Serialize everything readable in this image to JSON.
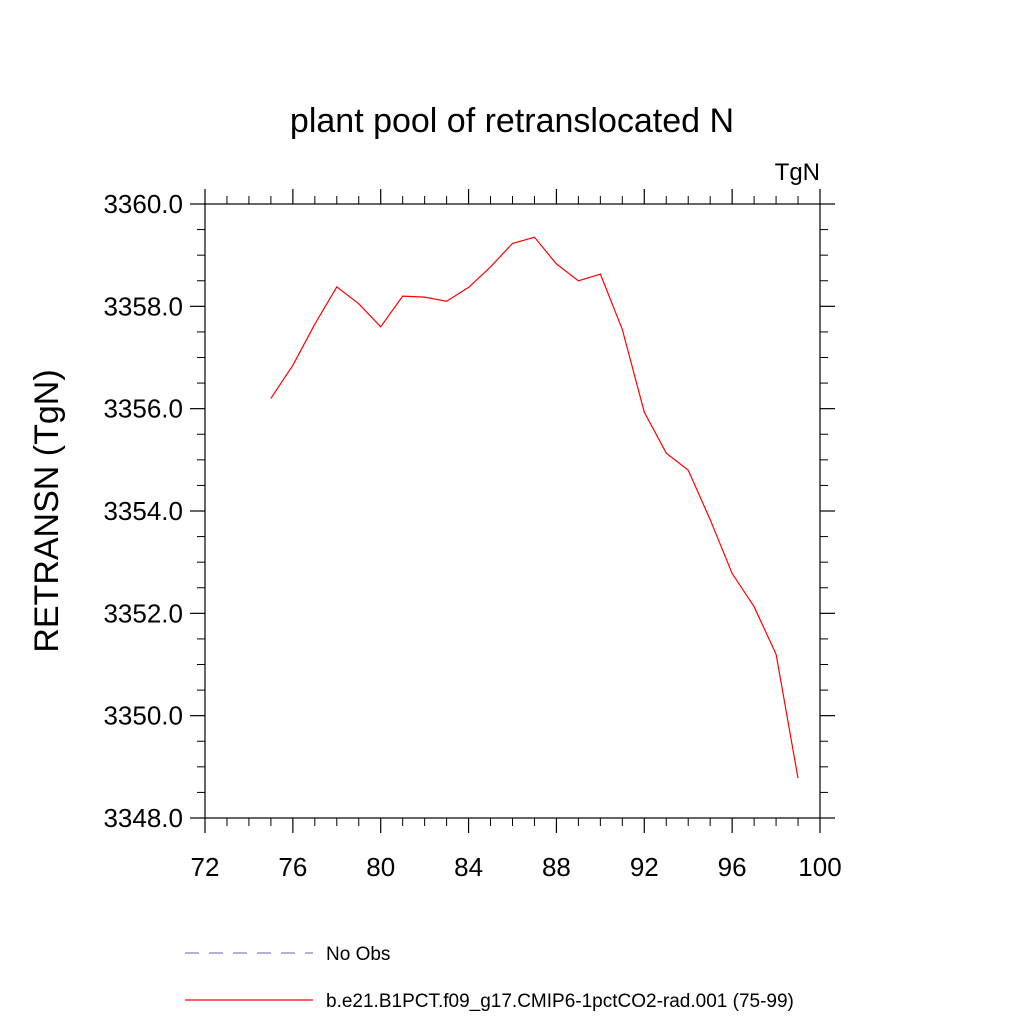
{
  "chart_data": {
    "type": "line",
    "title": "plant pool of retranslocated N",
    "units_label": "TgN",
    "ylabel": "RETRANSN  (TgN)",
    "xlabel": "",
    "xlim": [
      72,
      100
    ],
    "ylim": [
      3348.0,
      3360.0
    ],
    "x_ticks": [
      72,
      76,
      80,
      84,
      88,
      92,
      96,
      100
    ],
    "x_tick_labels": [
      "72",
      "76",
      "80",
      "84",
      "88",
      "92",
      "96",
      "100"
    ],
    "y_ticks": [
      3348.0,
      3350.0,
      3352.0,
      3354.0,
      3356.0,
      3358.0,
      3360.0
    ],
    "y_tick_labels": [
      "3348.0",
      "3350.0",
      "3352.0",
      "3354.0",
      "3356.0",
      "3358.0",
      "3360.0"
    ],
    "grid": false,
    "legend_placement": "bottom",
    "series": [
      {
        "name": "No Obs",
        "color": "#8080c0",
        "style": "dashed",
        "x": [],
        "y": []
      },
      {
        "name": "b.e21.B1PCT.f09_g17.CMIP6-1pctCO2-rad.001 (75-99)",
        "color": "#ff0000",
        "style": "solid",
        "x": [
          75,
          76,
          77,
          78,
          79,
          80,
          81,
          82,
          83,
          84,
          85,
          86,
          87,
          88,
          89,
          90,
          91,
          92,
          93,
          94,
          95,
          96,
          97,
          98,
          99
        ],
        "y": [
          3356.2,
          3356.85,
          3357.65,
          3358.38,
          3358.05,
          3357.6,
          3358.2,
          3358.18,
          3358.1,
          3358.37,
          3358.77,
          3359.23,
          3359.35,
          3358.83,
          3358.5,
          3358.63,
          3357.55,
          3355.93,
          3355.13,
          3354.8,
          3353.83,
          3352.78,
          3352.13,
          3351.2,
          3348.78
        ]
      }
    ]
  }
}
